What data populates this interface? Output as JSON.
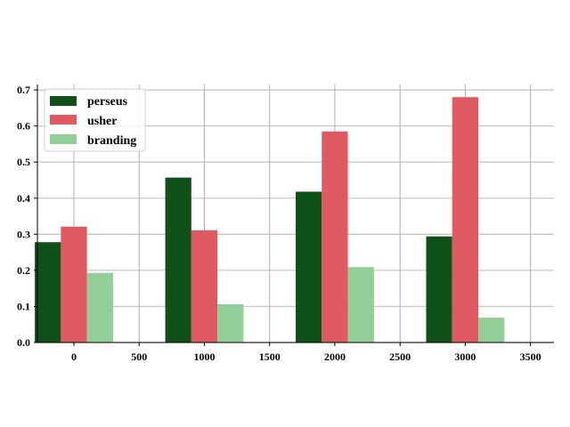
{
  "chart_data": {
    "type": "bar",
    "title": "",
    "xlabel": "",
    "ylabel": "",
    "x": [
      0,
      1000,
      2000,
      3000
    ],
    "bar_width": 200,
    "series": [
      {
        "name": "perseus",
        "color": "#0f5118",
        "values": [
          0.278,
          0.457,
          0.418,
          0.294
        ]
      },
      {
        "name": "usher",
        "color": "#e05a62",
        "values": [
          0.321,
          0.311,
          0.585,
          0.68
        ]
      },
      {
        "name": "branding",
        "color": "#92cf98",
        "values": [
          0.193,
          0.106,
          0.209,
          0.069
        ]
      }
    ],
    "xlim": [
      -280,
      3680
    ],
    "ylim": [
      0,
      0.715
    ],
    "xticks": [
      0,
      500,
      1000,
      1500,
      2000,
      2500,
      3000,
      3500
    ],
    "xtick_labels": [
      "0",
      "500",
      "1000",
      "1500",
      "2000",
      "2500",
      "3000",
      "3500"
    ],
    "yticks": [
      0.0,
      0.1,
      0.2,
      0.3,
      0.4,
      0.5,
      0.6,
      0.7
    ],
    "ytick_labels": [
      "0.0",
      "0.1",
      "0.2",
      "0.3",
      "0.4",
      "0.5",
      "0.6",
      "0.7"
    ],
    "grid": true,
    "legend_position": "top-left"
  }
}
